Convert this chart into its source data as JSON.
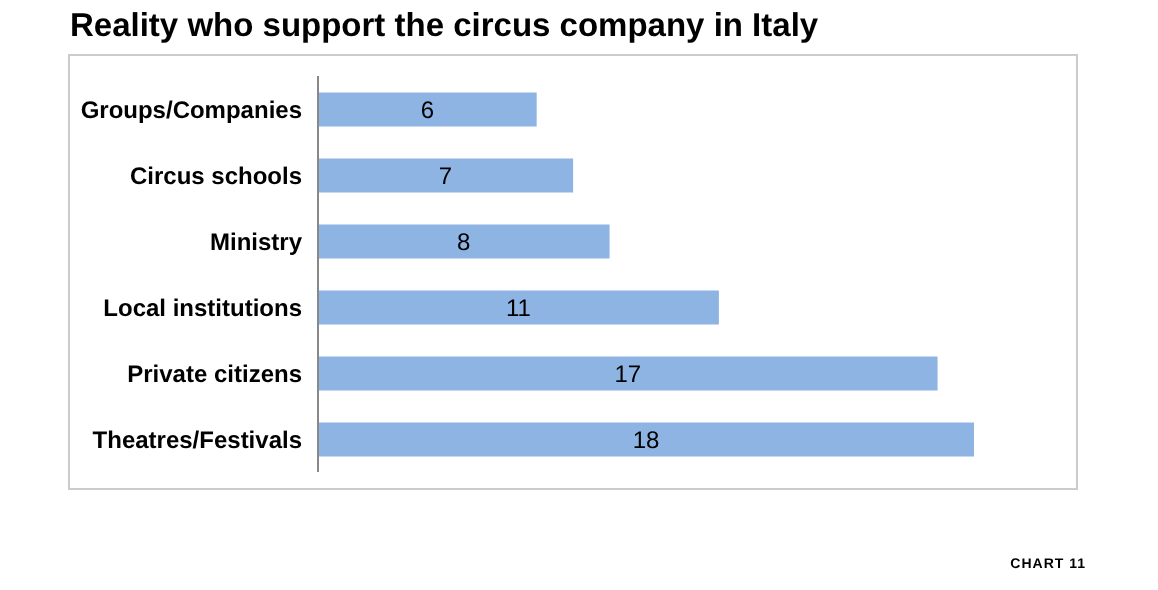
{
  "chart_data": {
    "type": "bar",
    "title": "Reality who support the circus company in Italy",
    "orientation": "horizontal",
    "categories": [
      "Groups/Companies",
      "Circus schools",
      "Ministry",
      "Local institutions",
      "Private citizens",
      "Theatres/Festivals"
    ],
    "values": [
      6,
      7,
      8,
      11,
      17,
      18
    ],
    "color": "#8db4e2",
    "data_labels": true,
    "tick_labels": "y",
    "annotations": [
      "CHART 11"
    ]
  }
}
